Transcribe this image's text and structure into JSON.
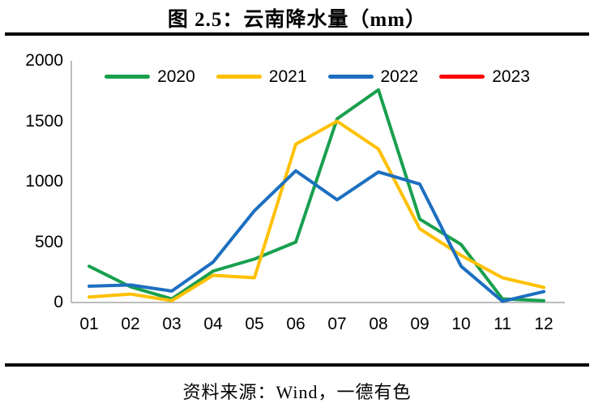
{
  "header": {
    "title": "图 2.5：云南降水量（mm）"
  },
  "footer": {
    "source": "资料来源：Wind，一德有色"
  },
  "chart_data": {
    "type": "line",
    "title": "图 2.5：云南降水量（mm）",
    "categories": [
      "01",
      "02",
      "03",
      "04",
      "05",
      "06",
      "07",
      "08",
      "09",
      "10",
      "11",
      "12"
    ],
    "series": [
      {
        "name": "2020",
        "color": "#18A04E",
        "values": [
          300,
          130,
          30,
          260,
          360,
          500,
          1520,
          1760,
          690,
          480,
          30,
          15
        ]
      },
      {
        "name": "2021",
        "color": "#FFC000",
        "values": [
          45,
          70,
          15,
          225,
          205,
          1310,
          1500,
          1270,
          610,
          390,
          205,
          125
        ]
      },
      {
        "name": "2022",
        "color": "#1C6FC0",
        "values": [
          135,
          145,
          95,
          335,
          760,
          1090,
          850,
          1080,
          980,
          300,
          10,
          90
        ]
      },
      {
        "name": "2023",
        "color": "#FF0000",
        "values": []
      }
    ],
    "xlabel": "",
    "ylabel": "",
    "ylim": [
      0,
      2000
    ],
    "yticks": [
      0,
      500,
      1000,
      1500,
      2000
    ],
    "grid": false,
    "legend_position": "top",
    "axis_color": "#A6A6A6"
  }
}
